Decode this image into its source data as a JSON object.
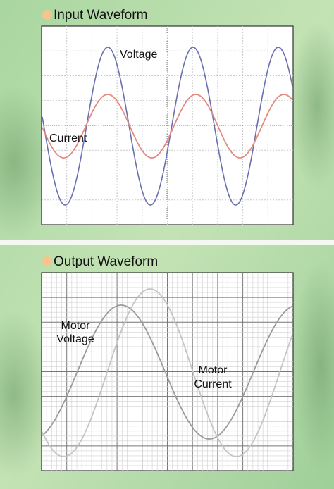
{
  "input_panel": {
    "title": "Input Waveform",
    "voltage_label": "Voltage",
    "current_label": "Current"
  },
  "output_panel": {
    "title": "Output Waveform",
    "voltage_label": [
      "Motor",
      "Voltage"
    ],
    "current_label": [
      "Motor",
      "Current"
    ]
  }
}
